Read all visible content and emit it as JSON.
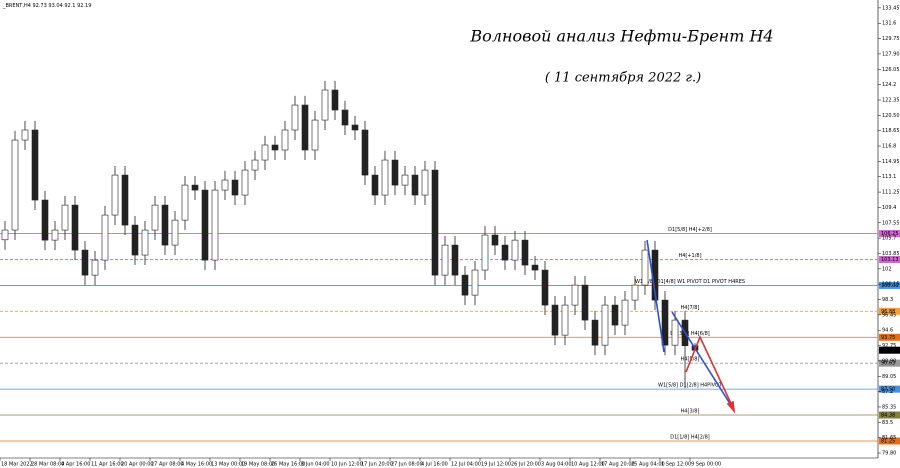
{
  "chart_data": {
    "type": "candlestick",
    "symbol": "_BRENT,H4",
    "title": "Волновой анализ Нефти-Брент H4",
    "subtitle": "( 11 сентября 2022 г.)",
    "x": [
      0,
      1,
      2,
      3,
      4,
      5,
      6,
      7,
      8,
      9,
      10,
      11,
      12,
      13,
      14,
      15,
      16,
      17,
      18,
      19,
      20,
      21,
      22,
      23,
      24,
      25,
      26,
      27,
      28,
      29,
      30,
      31,
      32,
      33,
      34,
      35,
      36,
      37,
      38,
      39,
      40,
      41,
      42,
      43,
      44,
      45,
      46,
      47,
      48,
      49,
      50,
      51,
      52,
      53,
      54,
      55,
      56,
      57,
      58,
      59,
      60,
      61,
      62,
      63,
      64,
      65,
      66,
      67,
      68,
      69
    ],
    "open": [
      105.5,
      106.67,
      117.52,
      118.73,
      110.29,
      105.46,
      106.67,
      109.68,
      104.26,
      101.24,
      103.05,
      108.48,
      113.3,
      107.27,
      103.66,
      106.67,
      109.68,
      104.86,
      107.87,
      112.09,
      111.49,
      103.05,
      111.49,
      112.7,
      110.89,
      113.9,
      115.11,
      116.92,
      116.32,
      118.73,
      121.74,
      116.32,
      119.93,
      123.55,
      121.14,
      119.33,
      118.73,
      113.3,
      110.89,
      115.11,
      112.09,
      113.3,
      110.89,
      113.9,
      101.24,
      104.86,
      101.24,
      98.83,
      101.85,
      106.07,
      104.86,
      103.05,
      105.46,
      102.45,
      101.85,
      97.63,
      94.01,
      97.63,
      100.04,
      95.82,
      92.8,
      97.63,
      95.22,
      98.23,
      100.04,
      104.26,
      98.23,
      92.8,
      95.82,
      92.73
    ],
    "high": [
      107.77,
      118.62,
      119.83,
      119.83,
      111.39,
      107.77,
      110.78,
      110.78,
      105.36,
      104.15,
      109.58,
      114.4,
      114.4,
      108.37,
      107.77,
      110.78,
      110.78,
      108.97,
      113.19,
      113.19,
      112.59,
      112.59,
      113.8,
      113.8,
      115.0,
      116.21,
      118.02,
      118.02,
      119.83,
      122.84,
      122.84,
      121.03,
      124.65,
      124.65,
      122.24,
      120.43,
      119.83,
      114.4,
      116.21,
      116.21,
      114.4,
      114.4,
      115.0,
      115.0,
      105.96,
      105.96,
      102.34,
      102.95,
      107.17,
      107.17,
      105.96,
      106.56,
      106.56,
      103.55,
      102.95,
      98.73,
      98.73,
      101.14,
      101.14,
      96.92,
      98.73,
      98.73,
      99.33,
      101.14,
      105.36,
      105.36,
      99.33,
      96.92,
      96.92,
      93.04
    ],
    "low": [
      104.3,
      105.47,
      116.32,
      109.09,
      104.26,
      104.26,
      105.47,
      103.06,
      100.04,
      100.04,
      101.85,
      107.28,
      106.07,
      102.46,
      102.46,
      105.47,
      103.66,
      103.66,
      106.67,
      110.29,
      101.85,
      101.85,
      110.29,
      109.69,
      109.69,
      112.7,
      113.91,
      115.12,
      115.12,
      117.53,
      115.12,
      115.12,
      118.73,
      119.94,
      118.13,
      117.53,
      112.1,
      109.69,
      109.69,
      110.89,
      110.89,
      109.69,
      109.69,
      100.04,
      100.04,
      100.04,
      97.63,
      97.63,
      100.65,
      103.66,
      101.85,
      101.85,
      101.25,
      100.65,
      96.43,
      92.81,
      92.81,
      96.43,
      94.62,
      91.6,
      91.6,
      94.02,
      94.02,
      97.03,
      98.84,
      97.03,
      91.6,
      91.6,
      87.6,
      92.1
    ],
    "close": [
      106.67,
      117.52,
      118.73,
      110.29,
      105.46,
      106.67,
      109.68,
      104.26,
      101.24,
      103.05,
      108.48,
      113.3,
      107.27,
      103.66,
      106.67,
      109.68,
      104.86,
      107.87,
      112.09,
      111.49,
      103.05,
      111.49,
      112.7,
      110.89,
      113.9,
      115.11,
      116.92,
      116.32,
      118.73,
      121.74,
      116.32,
      119.93,
      123.55,
      121.14,
      119.33,
      118.73,
      113.3,
      110.89,
      115.11,
      112.09,
      113.3,
      110.89,
      113.9,
      101.24,
      104.86,
      101.24,
      98.83,
      101.85,
      106.07,
      104.86,
      103.05,
      105.46,
      102.45,
      101.85,
      97.63,
      94.01,
      97.63,
      100.04,
      95.82,
      92.8,
      97.63,
      95.22,
      98.23,
      100.04,
      104.26,
      98.23,
      92.8,
      95.82,
      92.73,
      92.19
    ],
    "xlim": [
      -0.5,
      87.3
    ],
    "xticks": [
      {
        "value": 0,
        "label": "18 Mar 2022"
      },
      {
        "value": 3,
        "label": "28 Mar 08:00"
      },
      {
        "value": 6,
        "label": "4 Apr 16:00"
      },
      {
        "value": 9,
        "label": "11 Apr 16:00"
      },
      {
        "value": 12,
        "label": "20 Apr 00:00"
      },
      {
        "value": 15,
        "label": "27 Apr 08:00"
      },
      {
        "value": 18,
        "label": "4 May 16:00"
      },
      {
        "value": 21,
        "label": "13 May 00:00"
      },
      {
        "value": 24,
        "label": "19 May 08:00"
      },
      {
        "value": 27,
        "label": "26 May 16:00"
      },
      {
        "value": 30,
        "label": "3 Jun 04:00"
      },
      {
        "value": 33,
        "label": "10 Jun 12:00"
      },
      {
        "value": 36,
        "label": "17 Jun 20:00"
      },
      {
        "value": 39,
        "label": "27 Jun 08:00"
      },
      {
        "value": 42,
        "label": "4 Jul 16:00"
      },
      {
        "value": 45,
        "label": "12 Jul 04:00"
      },
      {
        "value": 48,
        "label": "19 Jul 12:00"
      },
      {
        "value": 51,
        "label": "26 Jul 20:00"
      },
      {
        "value": 54,
        "label": "3 Aug 04:00"
      },
      {
        "value": 57,
        "label": "10 Aug 12:00"
      },
      {
        "value": 60,
        "label": "17 Aug 20:00"
      },
      {
        "value": 63,
        "label": "25 Aug 04:00"
      },
      {
        "value": 66,
        "label": "1 Sep 12:00"
      },
      {
        "value": 69,
        "label": "9 Sep 00:00"
      }
    ],
    "ylim": [
      79.2,
      134.4
    ],
    "yticks": [
      {
        "value": 79.8,
        "label": "79.80"
      },
      81.65,
      83.5,
      85.35,
      87.2,
      89.05,
      {
        "value": 90.9,
        "label": "90.90"
      },
      92.75,
      94.6,
      96.45,
      98.3,
      100.15,
      102,
      103.85,
      105.7,
      107.55,
      109.4,
      111.25,
      113.1,
      114.95,
      116.8,
      118.65,
      {
        "value": 120.5,
        "label": "120.50"
      },
      122.35,
      124.2,
      126.05,
      {
        "value": 127.9,
        "label": "127.90"
      },
      129.75,
      131.6,
      133.45
    ],
    "levels": [
      {
        "value": 106.25,
        "label": "106.25",
        "text": "D1[5/8] H4[+2/8]",
        "color": "#cc66cc",
        "dashed": false
      },
      {
        "value": 103.13,
        "label": "103.13",
        "text": "H4[+1/8]",
        "color": "#cc66cc",
        "dashed": true
      },
      {
        "value": 100,
        "label": "100.00",
        "text": "W1[6/8] D1[4/8] W1 PIVOT D1 PIVOT H4RES",
        "color": "#4a90d9",
        "dashed": false
      },
      {
        "value": 96.88,
        "label": "96.88",
        "text": "H4[7/8]",
        "color": "#f0a040",
        "dashed": true
      },
      {
        "value": 93.75,
        "label": "93.75",
        "text": "D1[3/8] H4[6/8]",
        "color": "#e07020",
        "dashed": false
      },
      {
        "value": 90.63,
        "label": "90.63",
        "text": "H4[5/8]",
        "color": "#999999",
        "dashed": true
      },
      {
        "value": 87.5,
        "label": "87.50",
        "text": "W1[5/8] D1[2/8] H4PIVOT",
        "color": "#4a90d9",
        "dashed": false
      },
      {
        "value": 84.38,
        "label": "84.38",
        "text": "H4[3/8]",
        "color": "#808040",
        "dashed": false
      },
      {
        "value": 81.25,
        "label": "81.25",
        "text": "D1[1/8] H4[2/8]",
        "color": "#e07020",
        "dashed": false
      }
    ]
  }
}
